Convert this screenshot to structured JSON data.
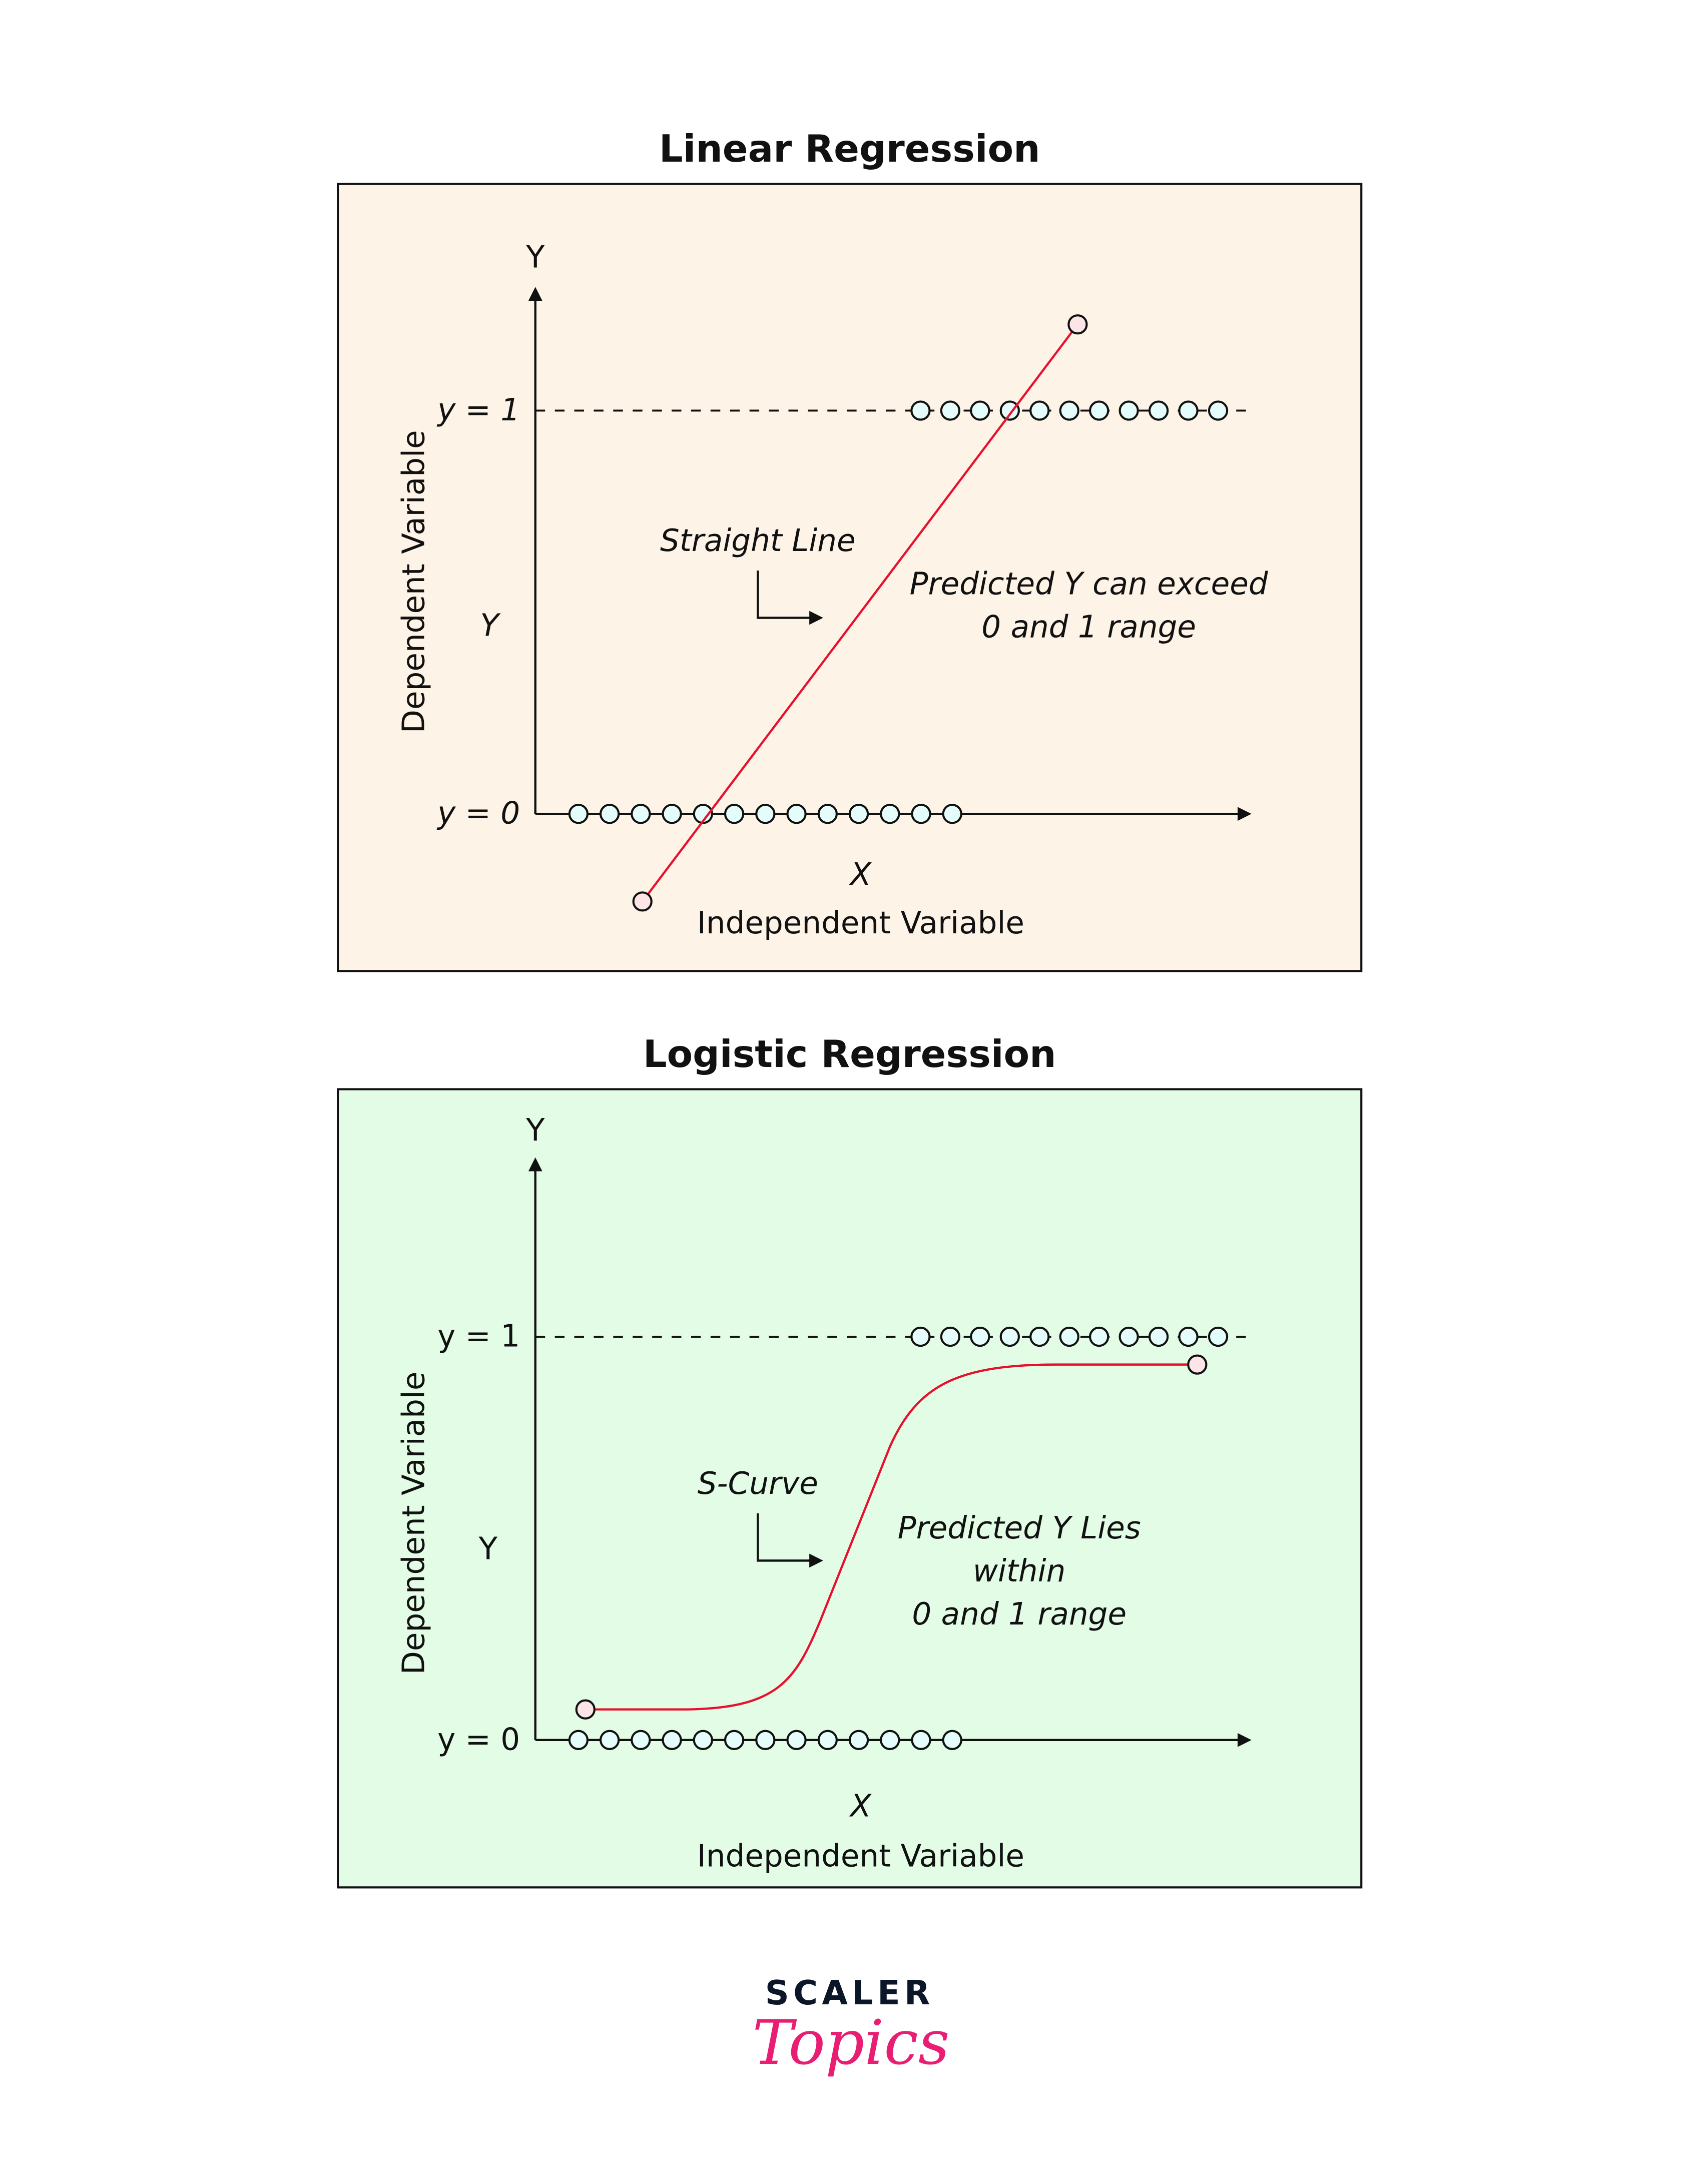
{
  "chart_data": [
    {
      "type": "diagram",
      "title": "Linear Regression",
      "background": "#fdf4e7",
      "y_axis_label": "Y",
      "y_variable": "Y",
      "y_label_long": "Dependent Variable",
      "x_variable": "X",
      "x_label_long": "Independent Variable",
      "y1_label": "y = 1",
      "y0_label": "y = 0",
      "class0_points": 13,
      "class1_points": 11,
      "fit": "straight line",
      "curve_label": "Straight Line",
      "note_lines": [
        "Predicted Y can exceed",
        "0 and 1 range"
      ]
    },
    {
      "type": "diagram",
      "title": "Logistic Regression",
      "background": "#e3fce6",
      "y_axis_label": "Y",
      "y_variable": "Y",
      "y_label_long": "Dependent Variable",
      "x_variable": "X",
      "x_label_long": "Independent Variable",
      "y1_label": "y = 1",
      "y0_label": "y = 0",
      "class0_points": 13,
      "class1_points": 11,
      "fit": "s-curve",
      "curve_label": "S-Curve",
      "note_lines": [
        "Predicted Y Lies",
        "within",
        "0 and 1 range"
      ]
    }
  ],
  "logo": {
    "top": "SCALER",
    "bottom": "Topics"
  },
  "colors": {
    "fit_line": "#e8112d",
    "points": "#e4fdfb",
    "logo_dark": "#0b1628",
    "logo_pink": "#e91e73"
  }
}
